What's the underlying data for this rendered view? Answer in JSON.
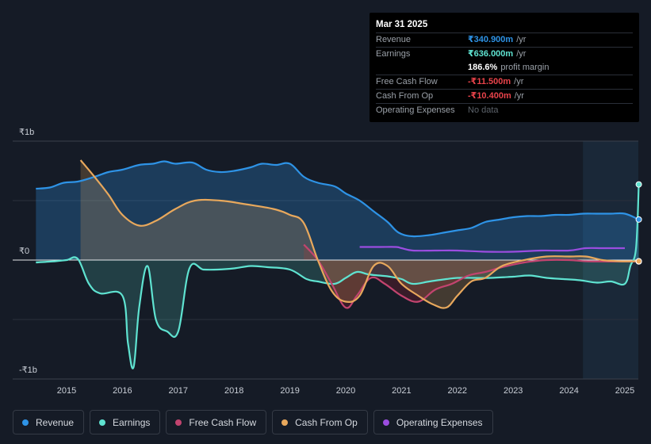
{
  "tooltip": {
    "date": "Mar 31 2025",
    "rows": [
      {
        "label": "Revenue",
        "value": "₹340.900m",
        "unit": "/yr"
      },
      {
        "label": "Earnings",
        "value": "₹636.000m",
        "unit": "/yr"
      },
      {
        "label": "",
        "value": "186.6%",
        "unit": "profit margin"
      },
      {
        "label": "Free Cash Flow",
        "value": "-₹11.500m",
        "unit": "/yr"
      },
      {
        "label": "Cash From Op",
        "value": "-₹10.400m",
        "unit": "/yr"
      },
      {
        "label": "Operating Expenses",
        "value": "No data",
        "unit": ""
      }
    ]
  },
  "legend": [
    {
      "label": "Revenue",
      "color": "#2e93e6"
    },
    {
      "label": "Earnings",
      "color": "#5fe3d1"
    },
    {
      "label": "Free Cash Flow",
      "color": "#c2446f"
    },
    {
      "label": "Cash From Op",
      "color": "#e8a85c"
    },
    {
      "label": "Operating Expenses",
      "color": "#9b4de0"
    }
  ],
  "chart_data": {
    "type": "area",
    "title": "",
    "xlabel": "",
    "ylabel": "₹",
    "y_unit": "₹m",
    "ylim": [
      -1000,
      1000
    ],
    "x_range": [
      2014.0,
      2025.3
    ],
    "y_tick_labels": [
      "₹1b",
      "₹0",
      "-₹1b"
    ],
    "y_tick_values": [
      1000,
      0,
      -1000
    ],
    "x_tick_labels": [
      "2015",
      "2016",
      "2017",
      "2018",
      "2019",
      "2020",
      "2021",
      "2022",
      "2023",
      "2024",
      "2025"
    ],
    "x_tick_values": [
      2015,
      2016,
      2017,
      2018,
      2019,
      2020,
      2021,
      2022,
      2023,
      2024,
      2025
    ],
    "forecast_start": 2024.25,
    "series": [
      {
        "name": "Revenue",
        "color": "#2e93e6",
        "fill": true,
        "x": [
          2014.45,
          2014.7,
          2014.95,
          2015.2,
          2015.5,
          2015.75,
          2016.0,
          2016.3,
          2016.55,
          2016.75,
          2016.95,
          2017.25,
          2017.5,
          2017.75,
          2018.0,
          2018.3,
          2018.5,
          2018.75,
          2019.0,
          2019.25,
          2019.5,
          2019.8,
          2020.0,
          2020.25,
          2020.5,
          2020.75,
          2020.95,
          2021.2,
          2021.5,
          2021.75,
          2022.0,
          2022.25,
          2022.5,
          2022.75,
          2023.0,
          2023.25,
          2023.5,
          2023.75,
          2024.0,
          2024.25,
          2024.5,
          2024.75,
          2025.0,
          2025.25
        ],
        "values": [
          600,
          610,
          650,
          660,
          700,
          740,
          760,
          800,
          810,
          830,
          810,
          820,
          760,
          740,
          750,
          780,
          810,
          800,
          810,
          700,
          650,
          620,
          560,
          500,
          410,
          320,
          230,
          200,
          210,
          230,
          250,
          270,
          320,
          340,
          360,
          370,
          370,
          380,
          380,
          390,
          390,
          390,
          390,
          341
        ]
      },
      {
        "name": "Earnings",
        "color": "#5fe3d1",
        "fill": true,
        "x": [
          2014.45,
          2014.8,
          2015.0,
          2015.2,
          2015.4,
          2015.6,
          2016.0,
          2016.1,
          2016.2,
          2016.3,
          2016.45,
          2016.6,
          2016.8,
          2017.0,
          2017.2,
          2017.45,
          2017.7,
          2018.0,
          2018.3,
          2018.6,
          2019.0,
          2019.3,
          2019.5,
          2019.8,
          2020.0,
          2020.2,
          2020.4,
          2020.6,
          2020.8,
          2021.0,
          2021.2,
          2021.5,
          2021.8,
          2022.0,
          2022.3,
          2022.6,
          2023.0,
          2023.3,
          2023.6,
          2023.9,
          2024.2,
          2024.5,
          2024.75,
          2025.0,
          2025.1,
          2025.2,
          2025.25
        ],
        "values": [
          -20,
          -10,
          0,
          10,
          -200,
          -280,
          -300,
          -700,
          -900,
          -400,
          -50,
          -500,
          -600,
          -600,
          -70,
          -80,
          -80,
          -70,
          -50,
          -60,
          -80,
          -160,
          -180,
          -200,
          -150,
          -100,
          -120,
          -130,
          -140,
          -160,
          -200,
          -180,
          -160,
          -150,
          -150,
          -150,
          -140,
          -130,
          -150,
          -160,
          -170,
          -190,
          -180,
          -200,
          -50,
          100,
          636
        ]
      },
      {
        "name": "Free Cash Flow",
        "color": "#c2446f",
        "fill": true,
        "x": [
          2019.25,
          2019.5,
          2019.75,
          2020.0,
          2020.2,
          2020.45,
          2020.7,
          2021.0,
          2021.3,
          2021.6,
          2021.9,
          2022.2,
          2022.5,
          2022.8,
          2023.2,
          2023.6,
          2024.0,
          2024.3,
          2024.6,
          2024.9,
          2025.25
        ],
        "values": [
          130,
          0,
          -200,
          -400,
          -300,
          -150,
          -200,
          -300,
          -350,
          -250,
          -200,
          -130,
          -100,
          -60,
          -20,
          0,
          0,
          -10,
          -12,
          -12,
          -12
        ]
      },
      {
        "name": "Cash From Op",
        "color": "#e8a85c",
        "fill": true,
        "x": [
          2015.25,
          2015.5,
          2015.75,
          2016.0,
          2016.3,
          2016.6,
          2016.95,
          2017.3,
          2017.75,
          2018.2,
          2018.7,
          2019.0,
          2019.25,
          2019.5,
          2019.75,
          2020.0,
          2020.25,
          2020.5,
          2020.75,
          2021.0,
          2021.3,
          2021.55,
          2021.8,
          2022.0,
          2022.25,
          2022.5,
          2022.8,
          2023.2,
          2023.6,
          2024.0,
          2024.3,
          2024.6,
          2024.9,
          2025.25
        ],
        "values": [
          840,
          700,
          550,
          380,
          290,
          330,
          430,
          500,
          500,
          470,
          430,
          380,
          310,
          0,
          -260,
          -350,
          -300,
          -50,
          -50,
          -200,
          -300,
          -370,
          -400,
          -300,
          -180,
          -150,
          -50,
          0,
          30,
          30,
          30,
          0,
          -10,
          -10
        ]
      },
      {
        "name": "Operating Expenses",
        "color": "#9b4de0",
        "fill": false,
        "x": [
          2020.25,
          2020.6,
          2020.9,
          2021.0,
          2021.2,
          2021.6,
          2022.0,
          2022.5,
          2023.0,
          2023.5,
          2024.0,
          2024.3,
          2024.6,
          2025.0
        ],
        "values": [
          110,
          110,
          110,
          100,
          80,
          80,
          80,
          70,
          70,
          80,
          80,
          100,
          100,
          100
        ]
      }
    ]
  }
}
